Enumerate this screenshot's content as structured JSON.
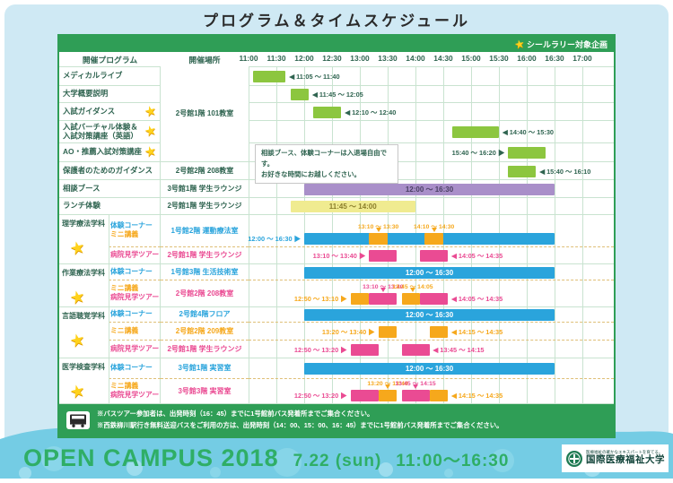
{
  "title": "プログラム＆タイムスケジュール",
  "sticker_badge": "シールラリー対象企画",
  "columns": {
    "program": "開催プログラム",
    "place": "開催場所"
  },
  "ticks": [
    "11:00",
    "11:30",
    "12:00",
    "12:30",
    "13:00",
    "13:30",
    "14:00",
    "14:30",
    "15:00",
    "15:30",
    "16:00",
    "16:30",
    "17:00"
  ],
  "float_note": {
    "line1": "相談ブース、体験コーナーは入退場自由です。",
    "line2": "お好きな時間にお越しください。"
  },
  "bus_notes": {
    "line1": "※バスツアー参加者は、出発時刻（16：45）までに1号館前バス発着所までご集合ください。",
    "line2": "※西鉄柳川駅行き無料送迎バスをご利用の方は、出発時刻（14：00、15：00、16：45）までに1号館前バス発着所までご集合ください。"
  },
  "footer": {
    "open_campus": "OPEN CAMPUS 2018",
    "date": "7.22 (sun)",
    "time": "11:00～16:30",
    "university": "国際医療福祉大学",
    "tagline": "医療福祉の確かなエキスパートを育てる。"
  },
  "icons": [
    "sticker-rally-star-icon",
    "bus-icon",
    "university-emblem-icon"
  ],
  "colors": {
    "band_green": "#2f9e56",
    "text_green": "#2f6450",
    "grid": "#c9e3d0",
    "dash": "#dfbf77",
    "green": "#8cc63f",
    "blue": "#2aa4dc",
    "orange": "#f6a81c",
    "pink": "#ea4b93",
    "purple": "#a98fc9",
    "yellow": "#f0eb90",
    "purple_text": "#4a3f63",
    "yellow_text": "#8a7d2a",
    "footer_green": "#2fae66",
    "wave_blue": "#74cce4",
    "page_blue": "#cfe9f4",
    "star": "#ffd21c"
  },
  "time_axis": {
    "start": "11:00",
    "end": "17:00",
    "step_minutes": 30
  },
  "schedule": {
    "merged_place": "2号館1階 101教室",
    "top_rows": [
      {
        "name": "メディカルライブ",
        "star": false,
        "h": 22,
        "bars": [
          {
            "c": "green",
            "s": "11:05",
            "e": "11:40"
          }
        ],
        "side": [
          {
            "t": "◀ 11:05 〜 11:40",
            "c": "greentext",
            "at": "11:40",
            "side": "right"
          }
        ],
        "merged": true
      },
      {
        "name": "大学概要説明",
        "star": false,
        "h": 19,
        "bars": [
          {
            "c": "green",
            "s": "11:45",
            "e": "12:05"
          }
        ],
        "side": [
          {
            "t": "◀ 11:45 〜 12:05",
            "c": "greentext",
            "at": "12:05",
            "side": "right"
          }
        ],
        "merged": true
      },
      {
        "name": "入試ガイダンス",
        "star": true,
        "h": 20,
        "bars": [
          {
            "c": "green",
            "s": "12:10",
            "e": "12:40"
          }
        ],
        "side": [
          {
            "t": "◀ 12:10 〜 12:40",
            "c": "greentext",
            "at": "12:40",
            "side": "right"
          }
        ],
        "merged": true
      },
      {
        "lines": [
          "入試バーチャル体験＆",
          "入試対策講座（英語）"
        ],
        "star": true,
        "h": 25,
        "bars": [
          {
            "c": "green",
            "s": "14:40",
            "e": "15:30"
          }
        ],
        "side": [
          {
            "t": "◀ 14:40 〜 15:30",
            "c": "greentext",
            "at": "15:30",
            "side": "right"
          }
        ],
        "merged": true
      },
      {
        "name": "AO・推薦入試対策講座",
        "star": true,
        "h": 21,
        "bars": [
          {
            "c": "green",
            "s": "15:40",
            "e": "16:20"
          }
        ],
        "side": [
          {
            "t": "15:40 〜 16:20 ▶",
            "c": "greentext",
            "at": "15:40",
            "side": "left"
          }
        ],
        "merged": true
      },
      {
        "name": "保護者のためのガイダンス",
        "star": false,
        "h": 20,
        "place": "2号館2階 208教室",
        "bars": [
          {
            "c": "green",
            "s": "15:40",
            "e": "16:10"
          }
        ],
        "side": [
          {
            "t": "◀ 15:40 〜 16:10",
            "c": "greentext",
            "at": "16:10",
            "side": "right"
          }
        ]
      },
      {
        "name": "相談ブース",
        "star": false,
        "h": 20,
        "place": "3号館1階 学生ラウンジ",
        "bars": [
          {
            "c": "purple",
            "s": "12:00",
            "e": "16:30",
            "label": "12:00 〜 16:30"
          }
        ]
      },
      {
        "name": "ランチ体験",
        "star": false,
        "h": 19,
        "place": "2号館1階 学生ラウンジ",
        "bars": [
          {
            "c": "yellow",
            "s": "11:45",
            "e": "14:00",
            "label": "11:45 〜 14:00"
          }
        ]
      }
    ],
    "departments": [
      {
        "name": "理学療法学科",
        "star": true,
        "rows": [
          {
            "h": 36,
            "labels": [
              {
                "t": "体験コーナー",
                "c": "blue"
              },
              {
                "t": "ミニ講義",
                "c": "orange"
              }
            ],
            "place": {
              "t": "1号館2階 運動療法室",
              "c": "blue"
            },
            "bars": [
              {
                "c": "blue",
                "s": "12:00",
                "e": "16:30"
              },
              {
                "c": "orange",
                "s": "13:10",
                "e": "13:30"
              },
              {
                "c": "orange",
                "s": "14:10",
                "e": "14:30"
              }
            ],
            "side": [
              {
                "t": "12:00 〜 16:30 ▶",
                "c": "blue",
                "at": "12:00",
                "side": "left"
              }
            ],
            "top": [
              {
                "t": "13:10 〜 13:30",
                "c": "orange",
                "at": "13:20"
              },
              {
                "t": "14:10 〜 14:30",
                "c": "orange",
                "at": "14:20"
              }
            ]
          },
          {
            "h": 19,
            "labels": [
              {
                "t": "病院見学ツアー",
                "c": "pink"
              }
            ],
            "place": {
              "t": "2号館1階 学生ラウンジ",
              "c": "pink"
            },
            "bars": [
              {
                "c": "pink",
                "s": "13:10",
                "e": "13:40"
              },
              {
                "c": "pink",
                "s": "14:05",
                "e": "14:35"
              }
            ],
            "side": [
              {
                "t": "13:10 〜 13:40 ▶",
                "c": "pink",
                "at": "13:10",
                "side": "left"
              },
              {
                "t": "◀ 14:05 〜 14:35",
                "c": "pink",
                "at": "14:35",
                "side": "right"
              }
            ]
          }
        ]
      },
      {
        "name": "作業療法学科",
        "star": true,
        "rows": [
          {
            "h": 18,
            "labels": [
              {
                "t": "体験コーナー",
                "c": "blue"
              }
            ],
            "place": {
              "t": "1号館3階 生活技術室",
              "c": "blue"
            },
            "bars": [
              {
                "c": "blue",
                "s": "12:00",
                "e": "16:30",
                "label": "12:00 〜 16:30"
              }
            ]
          },
          {
            "h": 30,
            "labels": [
              {
                "t": "ミニ講義",
                "c": "orange"
              },
              {
                "t": "病院見学ツアー",
                "c": "pink"
              }
            ],
            "place": {
              "t": "2号館2階 208教室",
              "c": "pink"
            },
            "bars": [
              {
                "c": "orange",
                "s": "12:50",
                "e": "13:10"
              },
              {
                "c": "pink",
                "s": "13:10",
                "e": "13:40"
              },
              {
                "c": "orange",
                "s": "13:45",
                "e": "14:05"
              },
              {
                "c": "pink",
                "s": "14:05",
                "e": "14:35"
              }
            ],
            "side": [
              {
                "t": "12:50 〜 13:10 ▶",
                "c": "orange",
                "at": "12:50",
                "side": "left"
              },
              {
                "t": "◀ 14:05 〜 14:35",
                "c": "pink",
                "at": "14:35",
                "side": "right"
              }
            ],
            "top": [
              {
                "t": "13:10 〜 13:40",
                "c": "pink",
                "at": "13:25"
              },
              {
                "t": "13:45 〜 14:05",
                "c": "orange",
                "at": "13:57"
              }
            ]
          }
        ]
      },
      {
        "name": "言語聴覚学科",
        "star": true,
        "rows": [
          {
            "h": 17,
            "labels": [
              {
                "t": "体験コーナー",
                "c": "blue"
              }
            ],
            "place": {
              "t": "2号館4階フロア",
              "c": "blue"
            },
            "bars": [
              {
                "c": "blue",
                "s": "12:00",
                "e": "16:30",
                "label": "12:00 〜 16:30"
              }
            ]
          },
          {
            "h": 20,
            "labels": [
              {
                "t": "ミニ講義",
                "c": "orange"
              }
            ],
            "place": {
              "t": "2号館2階 209教室",
              "c": "orange"
            },
            "bars": [
              {
                "c": "orange",
                "s": "13:20",
                "e": "13:40"
              },
              {
                "c": "orange",
                "s": "14:15",
                "e": "14:35"
              }
            ],
            "side": [
              {
                "t": "13:20 〜 13:40 ▶",
                "c": "orange",
                "at": "13:20",
                "side": "left"
              },
              {
                "t": "◀ 14:15 〜 14:35",
                "c": "orange",
                "at": "14:35",
                "side": "right"
              }
            ]
          },
          {
            "h": 20,
            "labels": [
              {
                "t": "病院見学ツアー",
                "c": "pink"
              }
            ],
            "place": {
              "t": "2号館1階 学生ラウンジ",
              "c": "pink"
            },
            "bars": [
              {
                "c": "pink",
                "s": "12:50",
                "e": "13:20"
              },
              {
                "c": "pink",
                "s": "13:45",
                "e": "14:15"
              }
            ],
            "side": [
              {
                "t": "12:50 〜 13:20 ▶",
                "c": "pink",
                "at": "12:50",
                "side": "left"
              },
              {
                "t": "◀ 13:45 〜 14:15",
                "c": "pink",
                "at": "14:15",
                "side": "right"
              }
            ]
          }
        ]
      },
      {
        "name": "医学検査学科",
        "star": true,
        "rows": [
          {
            "h": 23,
            "labels": [
              {
                "t": "体験コーナー",
                "c": "blue"
              }
            ],
            "place": {
              "t": "3号館1階 実習室",
              "c": "blue"
            },
            "bars": [
              {
                "c": "blue",
                "s": "12:00",
                "e": "16:30",
                "label": "12:00 〜 16:30"
              }
            ]
          },
          {
            "h": 28,
            "labels": [
              {
                "t": "ミニ講義",
                "c": "orange"
              },
              {
                "t": "病院見学ツアー",
                "c": "pink"
              }
            ],
            "place": {
              "t": "3号館3階 実習室",
              "c": "pink"
            },
            "bars": [
              {
                "c": "pink",
                "s": "12:50",
                "e": "13:20"
              },
              {
                "c": "orange",
                "s": "13:20",
                "e": "13:40"
              },
              {
                "c": "pink",
                "s": "13:45",
                "e": "14:15"
              },
              {
                "c": "orange",
                "s": "14:15",
                "e": "14:35"
              }
            ],
            "side": [
              {
                "t": "12:50 〜 13:20 ▶",
                "c": "pink",
                "at": "12:50",
                "side": "left"
              },
              {
                "t": "◀ 14:15 〜 14:35",
                "c": "orange",
                "at": "14:35",
                "side": "right"
              }
            ],
            "top": [
              {
                "t": "13:20 〜 13:40",
                "c": "orange",
                "at": "13:30"
              },
              {
                "t": "13:45 〜 14:15",
                "c": "pink",
                "at": "14:00"
              }
            ]
          }
        ]
      }
    ]
  }
}
